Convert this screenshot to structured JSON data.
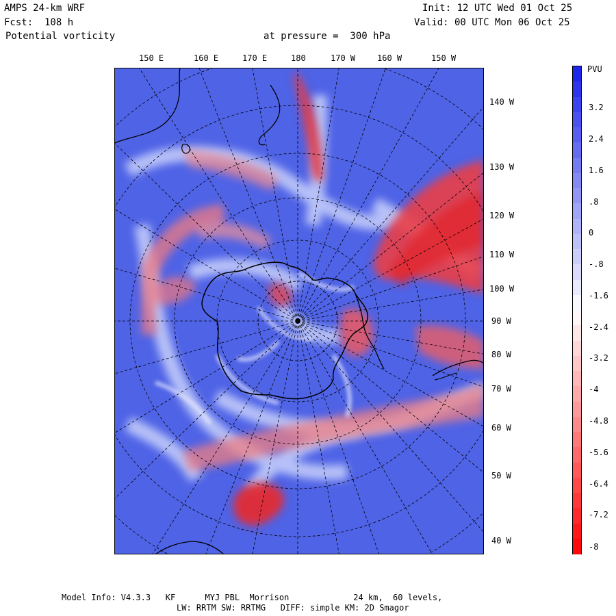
{
  "header": {
    "model": "AMPS 24-km WRF",
    "forecast": "Fcst:  108 h",
    "field": "Potential vorticity",
    "level_text": "at pressure =  300 hPa",
    "init": "Init: 12 UTC Wed 01 Oct 25",
    "valid": "Valid: 00 UTC Mon 06 Oct 25"
  },
  "top_lon_labels": [
    "150 E",
    "160 E",
    "170 E",
    "180",
    "170 W",
    "160 W",
    "150 W"
  ],
  "right_lon_labels": [
    "140 W",
    "130 W",
    "120 W",
    "110 W",
    "100 W",
    "90 W",
    "80 W",
    "70 W",
    "60 W",
    "50 W",
    "40 W"
  ],
  "colorbar": {
    "units": "PVU",
    "ticks": [
      "3.2",
      "2.4",
      "1.6",
      ".8",
      "0",
      "-.8",
      "-1.6",
      "-2.4",
      "-3.2",
      "-4",
      "-4.8",
      "-5.6",
      "-6.4",
      "-7.2",
      "-8"
    ]
  },
  "footer": {
    "line1": "Model Info: V4.3.3   KF      MYJ PBL  Morrison             24 km,  60 levels,",
    "line2": "LW: RRTM SW: RRTMG   DIFF: simple KM: 2D Smagor"
  },
  "colors": {
    "positive": "#4a5ee8",
    "negative": "#e8232a",
    "neutral": "#ffffff",
    "coast": "#000000"
  }
}
